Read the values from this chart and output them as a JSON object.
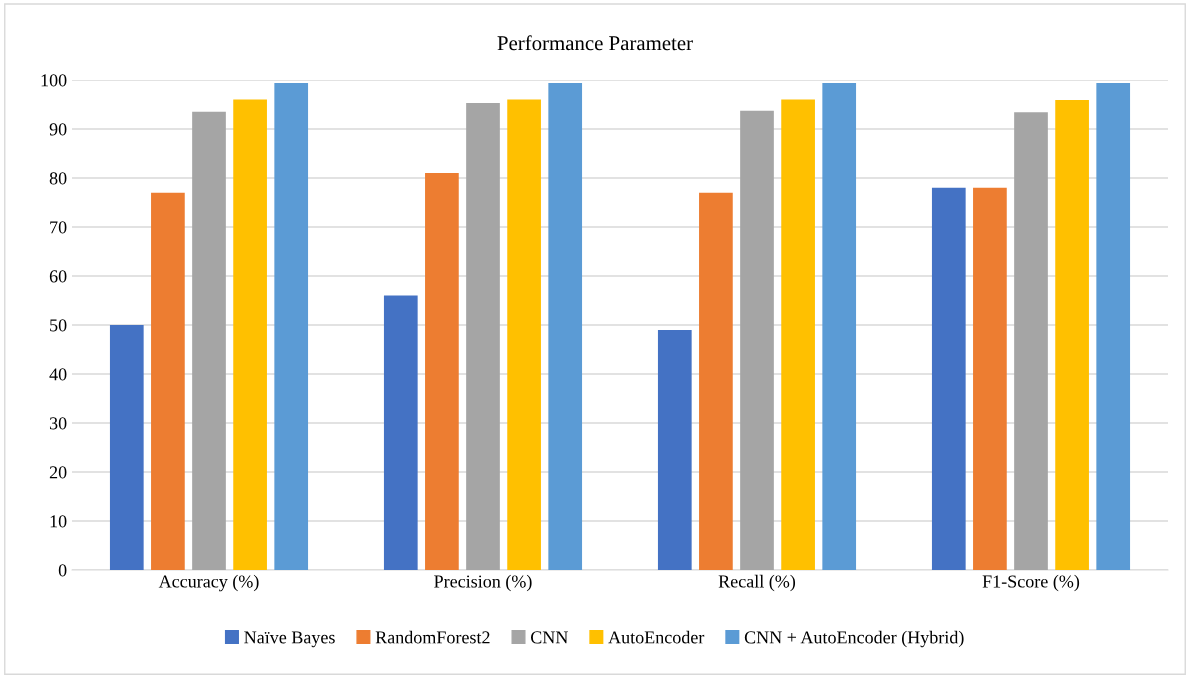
{
  "chart_data": {
    "type": "bar",
    "title": "Performance Parameter",
    "categories": [
      "Accuracy (%)",
      "Precision (%)",
      "Recall (%)",
      "F1-Score (%)"
    ],
    "series": [
      {
        "name": "Naïve Bayes",
        "color": "#4472c4",
        "values": [
          50,
          56,
          49,
          78
        ]
      },
      {
        "name": "RandomForest2",
        "color": "#ed7d31",
        "values": [
          77,
          81,
          77,
          78
        ]
      },
      {
        "name": "CNN",
        "color": "#a5a5a5",
        "values": [
          93.5,
          95.3,
          93.7,
          93.4
        ]
      },
      {
        "name": "AutoEncoder",
        "color": "#ffc000",
        "values": [
          96,
          96,
          96,
          95.9
        ]
      },
      {
        "name": "CNN + AutoEncoder (Hybrid)",
        "color": "#5b9bd5",
        "values": [
          99.4,
          99.4,
          99.4,
          99.4
        ]
      }
    ],
    "ylim": [
      0,
      100
    ],
    "yticks": [
      0,
      10,
      20,
      30,
      40,
      50,
      60,
      70,
      80,
      90,
      100
    ],
    "grid": "y",
    "legend": "bottom"
  }
}
